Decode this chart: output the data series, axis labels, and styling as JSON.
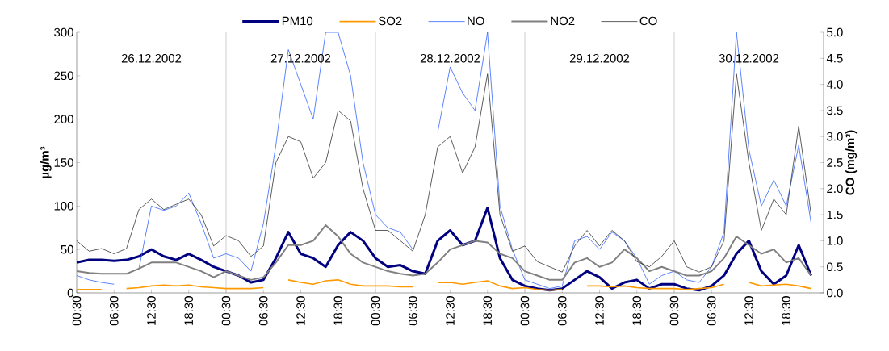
{
  "chart_data": {
    "type": "line",
    "ylabel": "µg/m³",
    "y2label": "CO (mg/m³)",
    "x": [
      "2002-12-26T00:30",
      "2002-12-26T02:30",
      "2002-12-26T04:30",
      "2002-12-26T06:30",
      "2002-12-26T08:30",
      "2002-12-26T10:30",
      "2002-12-26T12:30",
      "2002-12-26T14:30",
      "2002-12-26T16:30",
      "2002-12-26T18:30",
      "2002-12-26T20:30",
      "2002-12-26T22:30",
      "2002-12-27T00:30",
      "2002-12-27T02:30",
      "2002-12-27T04:30",
      "2002-12-27T06:30",
      "2002-12-27T08:30",
      "2002-12-27T10:30",
      "2002-12-27T12:30",
      "2002-12-27T14:30",
      "2002-12-27T16:30",
      "2002-12-27T18:30",
      "2002-12-27T20:30",
      "2002-12-27T22:30",
      "2002-12-28T00:30",
      "2002-12-28T02:30",
      "2002-12-28T04:30",
      "2002-12-28T06:30",
      "2002-12-28T08:30",
      "2002-12-28T10:30",
      "2002-12-28T12:30",
      "2002-12-28T14:30",
      "2002-12-28T16:30",
      "2002-12-28T18:30",
      "2002-12-28T20:30",
      "2002-12-28T22:30",
      "2002-12-29T00:30",
      "2002-12-29T02:30",
      "2002-12-29T04:30",
      "2002-12-29T06:30",
      "2002-12-29T08:30",
      "2002-12-29T10:30",
      "2002-12-29T12:30",
      "2002-12-29T14:30",
      "2002-12-29T16:30",
      "2002-12-29T18:30",
      "2002-12-29T20:30",
      "2002-12-29T22:30",
      "2002-12-30T00:30",
      "2002-12-30T02:30",
      "2002-12-30T04:30",
      "2002-12-30T06:30",
      "2002-12-30T08:30",
      "2002-12-30T10:30",
      "2002-12-30T12:30",
      "2002-12-30T14:30",
      "2002-12-30T16:30",
      "2002-12-30T18:30",
      "2002-12-30T20:30",
      "2002-12-30T22:30"
    ],
    "xlim": [
      "2002-12-26T00:30",
      "2002-12-31T00:30"
    ],
    "xticks": [
      {
        "value": "2002-12-26T00:30",
        "label": "00:30"
      },
      {
        "value": "2002-12-26T06:30",
        "label": "06:30"
      },
      {
        "value": "2002-12-26T12:30",
        "label": "12:30"
      },
      {
        "value": "2002-12-26T18:30",
        "label": "18:30"
      },
      {
        "value": "2002-12-27T00:30",
        "label": "00:30"
      },
      {
        "value": "2002-12-27T06:30",
        "label": "06:30"
      },
      {
        "value": "2002-12-27T12:30",
        "label": "12:30"
      },
      {
        "value": "2002-12-27T18:30",
        "label": "18:30"
      },
      {
        "value": "2002-12-28T00:30",
        "label": "00:30"
      },
      {
        "value": "2002-12-28T06:30",
        "label": "06:30"
      },
      {
        "value": "2002-12-28T12:30",
        "label": "12:30"
      },
      {
        "value": "2002-12-28T18:30",
        "label": "18:30"
      },
      {
        "value": "2002-12-29T00:30",
        "label": "00:30"
      },
      {
        "value": "2002-12-29T06:30",
        "label": "06:30"
      },
      {
        "value": "2002-12-29T12:30",
        "label": "12:30"
      },
      {
        "value": "2002-12-29T18:30",
        "label": "18:30"
      },
      {
        "value": "2002-12-30T00:30",
        "label": "00:30"
      },
      {
        "value": "2002-12-30T06:30",
        "label": "06:30"
      },
      {
        "value": "2002-12-30T12:30",
        "label": "12:30"
      },
      {
        "value": "2002-12-30T18:30",
        "label": "18:30"
      }
    ],
    "ylim": [
      0,
      300
    ],
    "yticks": [
      0,
      50,
      100,
      150,
      200,
      250,
      300
    ],
    "y2lim": [
      0,
      5
    ],
    "y2ticks": [
      {
        "value": 0,
        "label": "0.0"
      },
      {
        "value": 0.5,
        "label": "0.5"
      },
      {
        "value": 1,
        "label": "1.0"
      },
      {
        "value": 1.5,
        "label": "1.5"
      },
      {
        "value": 2,
        "label": "2.0"
      },
      {
        "value": 2.5,
        "label": "2.5"
      },
      {
        "value": 3,
        "label": "3.0"
      },
      {
        "value": 3.5,
        "label": "3.5"
      },
      {
        "value": 4,
        "label": "4.0"
      },
      {
        "value": 4.5,
        "label": "4.5"
      },
      {
        "value": 5,
        "label": "5.0"
      }
    ],
    "legend": "top",
    "annotations": [
      "26.12.2002",
      "27.12.2002",
      "28.12.2002",
      "29.12.2002",
      "30.12.2002"
    ],
    "ref_lines": [
      {
        "axis": "x",
        "value": "2002-12-27T00:30",
        "color": "#c0c0c0"
      },
      {
        "axis": "x",
        "value": "2002-12-28T00:30",
        "color": "#c0c0c0"
      },
      {
        "axis": "x",
        "value": "2002-12-29T00:30",
        "color": "#c0c0c0"
      },
      {
        "axis": "x",
        "value": "2002-12-30T00:30",
        "color": "#c0c0c0"
      }
    ],
    "series": [
      {
        "name": "PM10",
        "color": "#000080",
        "values": [
          35,
          38,
          38,
          37,
          38,
          42,
          50,
          42,
          38,
          45,
          38,
          30,
          25,
          20,
          12,
          15,
          40,
          70,
          45,
          40,
          30,
          55,
          70,
          60,
          40,
          30,
          32,
          25,
          22,
          60,
          72,
          55,
          60,
          98,
          40,
          15,
          8,
          5,
          3,
          5,
          15,
          25,
          18,
          5,
          12,
          15,
          5,
          10,
          10,
          5,
          3,
          8,
          20,
          45,
          60,
          25,
          10,
          20,
          55,
          20
        ]
      },
      {
        "name": "SO2",
        "color": "#ff9900",
        "values": [
          4,
          4,
          4,
          null,
          5,
          6,
          8,
          9,
          8,
          9,
          7,
          6,
          5,
          5,
          5,
          6,
          null,
          15,
          12,
          10,
          14,
          15,
          10,
          8,
          8,
          8,
          7,
          7,
          null,
          12,
          12,
          10,
          12,
          14,
          8,
          5,
          6,
          4,
          3,
          4,
          null,
          8,
          8,
          7,
          8,
          6,
          5,
          5,
          5,
          4,
          5,
          6,
          10,
          null,
          12,
          8,
          9,
          10,
          8,
          5
        ]
      },
      {
        "name": "NO",
        "color": "#3366ff",
        "values": [
          20,
          15,
          12,
          10,
          null,
          28,
          100,
          95,
          100,
          115,
          80,
          40,
          45,
          40,
          25,
          80,
          170,
          280,
          240,
          200,
          300,
          300,
          250,
          150,
          90,
          75,
          70,
          50,
          null,
          185,
          260,
          230,
          210,
          300,
          100,
          50,
          15,
          10,
          5,
          8,
          60,
          65,
          50,
          70,
          60,
          40,
          10,
          20,
          25,
          15,
          12,
          30,
          70,
          300,
          165,
          100,
          130,
          100,
          170,
          80
        ]
      },
      {
        "name": "NO2",
        "color": "#808080",
        "values": [
          25,
          23,
          22,
          22,
          22,
          28,
          35,
          35,
          35,
          30,
          25,
          18,
          25,
          20,
          15,
          18,
          35,
          55,
          55,
          60,
          78,
          65,
          45,
          35,
          30,
          25,
          22,
          20,
          22,
          35,
          50,
          55,
          60,
          58,
          45,
          40,
          25,
          20,
          15,
          15,
          35,
          40,
          30,
          35,
          50,
          40,
          25,
          30,
          25,
          20,
          20,
          25,
          40,
          65,
          55,
          45,
          50,
          35,
          40,
          20
        ]
      },
      {
        "name": "CO",
        "color": "#333333",
        "axis": "y2",
        "values": [
          1.0,
          0.8,
          0.85,
          0.75,
          0.85,
          1.6,
          1.8,
          1.6,
          1.7,
          1.8,
          1.5,
          0.9,
          1.1,
          1.0,
          0.7,
          0.9,
          2.5,
          3.0,
          2.9,
          2.2,
          2.5,
          3.5,
          3.3,
          2.0,
          1.2,
          1.2,
          1.0,
          0.8,
          1.5,
          2.8,
          3.0,
          2.3,
          2.8,
          4.2,
          1.5,
          0.8,
          0.9,
          0.6,
          0.5,
          0.4,
          0.9,
          1.2,
          0.9,
          1.2,
          1.0,
          0.6,
          0.5,
          0.7,
          1.0,
          0.5,
          0.4,
          0.5,
          1.0,
          4.2,
          2.5,
          1.2,
          1.8,
          1.5,
          3.2,
          1.5
        ]
      }
    ]
  }
}
